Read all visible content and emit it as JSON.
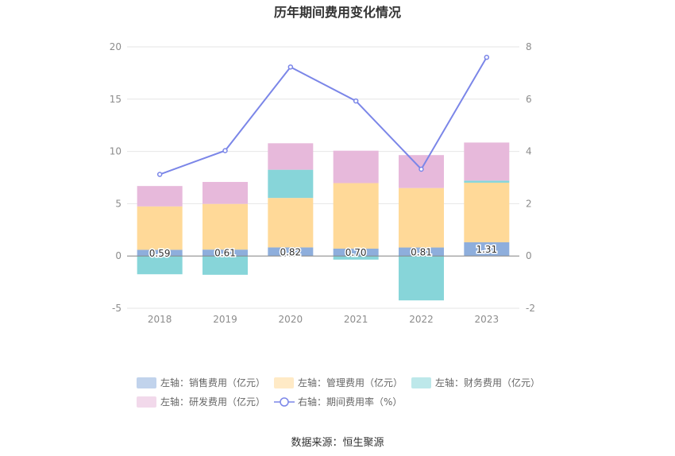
{
  "chart_data": {
    "type": "bar",
    "title": "历年期间费用变化情况",
    "categories": [
      "2018",
      "2019",
      "2020",
      "2021",
      "2022",
      "2023"
    ],
    "stacked": true,
    "series": [
      {
        "name": "左轴：销售费用（亿元）",
        "axis": "left",
        "color": "#8eaedc",
        "values": [
          0.59,
          0.61,
          0.82,
          0.7,
          0.81,
          1.31
        ],
        "show_labels": true
      },
      {
        "name": "左轴：管理费用（亿元）",
        "axis": "left",
        "color": "#ffd998",
        "values": [
          4.15,
          4.37,
          4.73,
          6.27,
          5.69,
          5.7
        ]
      },
      {
        "name": "左轴：财务费用（亿元）",
        "axis": "left",
        "color": "#87d5d9",
        "values": [
          -1.75,
          -1.8,
          2.7,
          -0.35,
          -4.25,
          0.2
        ]
      },
      {
        "name": "左轴：研发费用（亿元）",
        "axis": "left",
        "color": "#e7b9db",
        "values": [
          1.95,
          2.1,
          2.53,
          3.1,
          3.15,
          3.64
        ]
      },
      {
        "name": "右轴：期间费用率（%）",
        "axis": "right",
        "type": "line",
        "color": "#7b86e8",
        "values": [
          3.12,
          4.03,
          7.23,
          5.93,
          3.32,
          7.6
        ]
      }
    ],
    "y_left": {
      "min": -5,
      "max": 20,
      "ticks": [
        "-5",
        "0",
        "5",
        "10",
        "15",
        "20"
      ]
    },
    "y_right": {
      "min": -2,
      "max": 8,
      "ticks": [
        "-2",
        "0",
        "2",
        "4",
        "6",
        "8"
      ]
    },
    "grid": true,
    "legend_position": "bottom",
    "source": "数据来源：恒生聚源"
  }
}
